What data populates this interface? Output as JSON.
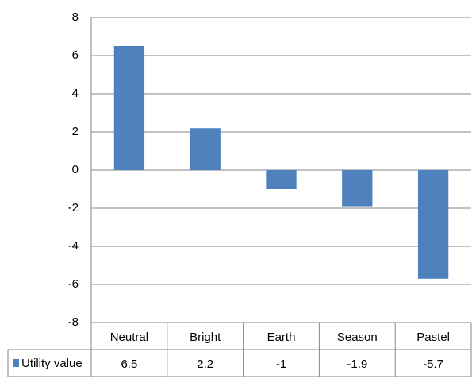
{
  "chart_data": {
    "type": "bar",
    "categories": [
      "Neutral",
      "Bright",
      "Earth",
      "Season",
      "Pastel"
    ],
    "series": [
      {
        "name": "Utility value",
        "color": "#4f81bd",
        "values": [
          6.5,
          2.2,
          -1,
          -1.9,
          -5.7
        ]
      }
    ],
    "ylim": [
      -8,
      8
    ],
    "yticks": [
      -8,
      -6,
      -4,
      -2,
      0,
      2,
      4,
      6,
      8
    ],
    "grid": true,
    "data_table": true
  }
}
